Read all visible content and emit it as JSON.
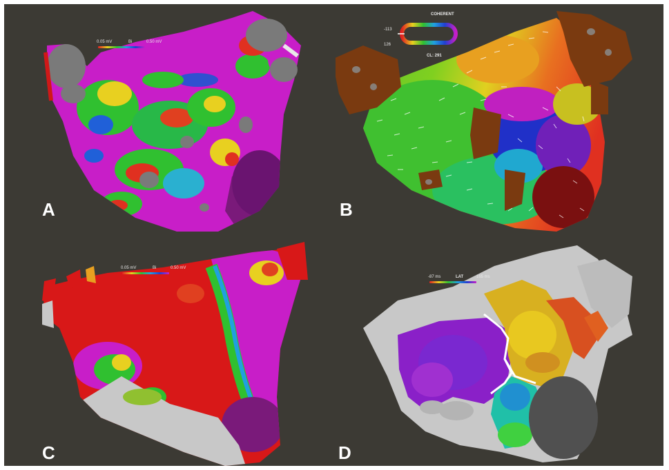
{
  "panels": {
    "a": {
      "label": "A",
      "scale_min": "0.05 mV",
      "scale_name": "Bi",
      "scale_max": "0.50 mV"
    },
    "b": {
      "label": "B",
      "title": "COHERENT",
      "min": "-113",
      "max": "126",
      "cycle": "CL: 291"
    },
    "c": {
      "label": "C",
      "scale_min": "0.05 mV",
      "scale_name": "Bi",
      "scale_max": "0.50 mV"
    },
    "d": {
      "label": "D",
      "scale_min": "-87 ms",
      "scale_name": "LAT",
      "scale_max": "165 ms"
    }
  },
  "colors": {
    "background": "#3c3a34",
    "label": "#ffffff",
    "scar": "#7a7a7a",
    "unmapped": "#c8c8c8"
  }
}
